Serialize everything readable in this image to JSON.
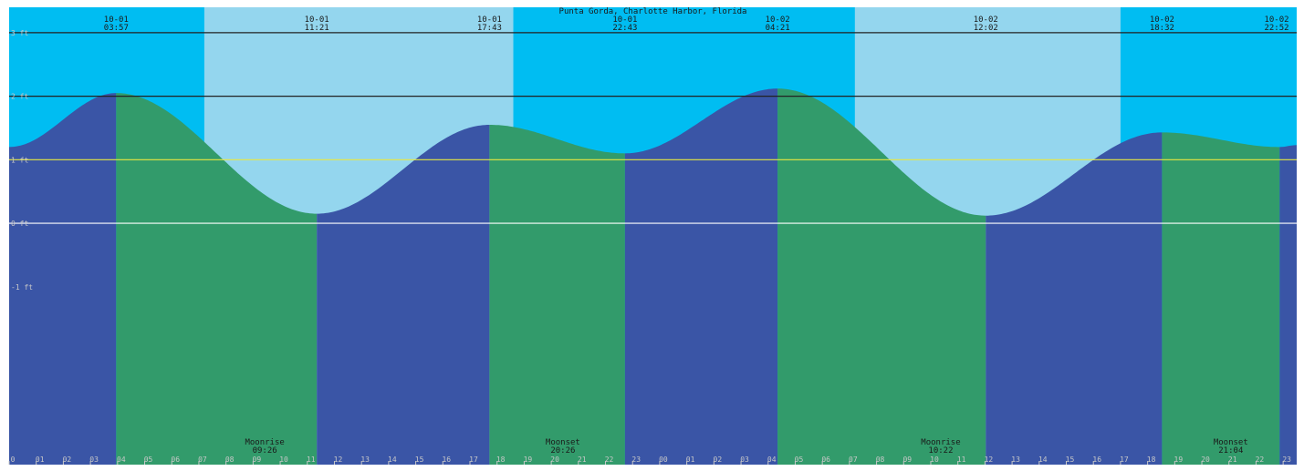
{
  "chart_data": {
    "type": "area",
    "title": "Punta Gorda, Charlotte Harbor, Florida",
    "ylim": [
      -3.8,
      3.4
    ],
    "y_ticks": [
      {
        "value": 3,
        "label": "3 ft"
      },
      {
        "value": 2,
        "label": "2 ft"
      },
      {
        "value": 1,
        "label": "1 ft"
      },
      {
        "value": 0,
        "label": "0 ft"
      },
      {
        "value": -1,
        "label": "-1 ft"
      }
    ],
    "x_range_hours": [
      0,
      47.5
    ],
    "hour_ticks": [
      "0",
      "01",
      "02",
      "03",
      "04",
      "05",
      "06",
      "07",
      "08",
      "09",
      "10",
      "11",
      "12",
      "13",
      "14",
      "15",
      "16",
      "17",
      "18",
      "19",
      "20",
      "21",
      "22",
      "23",
      "00",
      "01",
      "02",
      "03",
      "04",
      "05",
      "06",
      "07",
      "08",
      "09",
      "10",
      "11",
      "12",
      "13",
      "14",
      "15",
      "16",
      "17",
      "18",
      "19",
      "20",
      "21",
      "22",
      "23"
    ],
    "extremes": [
      {
        "date": "10-01",
        "time": "03:57",
        "hour": 3.95,
        "height": 2.05,
        "kind": "high"
      },
      {
        "date": "10-01",
        "time": "11:21",
        "hour": 11.35,
        "height": 0.15,
        "kind": "low"
      },
      {
        "date": "10-01",
        "time": "17:43",
        "hour": 17.72,
        "height": 1.55,
        "kind": "high"
      },
      {
        "date": "10-01",
        "time": "22:43",
        "hour": 22.72,
        "height": 1.1,
        "kind": "low"
      },
      {
        "date": "10-02",
        "time": "04:21",
        "hour": 28.35,
        "height": 2.12,
        "kind": "high"
      },
      {
        "date": "10-02",
        "time": "12:02",
        "hour": 36.03,
        "height": 0.12,
        "kind": "low"
      },
      {
        "date": "10-02",
        "time": "18:32",
        "hour": 42.53,
        "height": 1.43,
        "kind": "high"
      },
      {
        "date": "10-02",
        "time": "22:52",
        "hour": 46.87,
        "height": 1.2,
        "kind": "low"
      }
    ],
    "start_height": 1.2,
    "end_height": 1.23,
    "daylight": [
      {
        "from": 7.2,
        "to": 18.6
      },
      {
        "from": 31.2,
        "to": 41.0
      }
    ],
    "moon_events": [
      {
        "label": "Moonrise",
        "time": "09:26",
        "hour": 9.43
      },
      {
        "label": "Moonset",
        "time": "20:26",
        "hour": 20.43
      },
      {
        "label": "Moonrise",
        "time": "10:22",
        "hour": 34.37
      },
      {
        "label": "Moonset",
        "time": "21:04",
        "hour": 45.07
      }
    ],
    "grid": true,
    "colors": {
      "night_sky": "#00bdf2",
      "day_sky": "#94d6ee",
      "rising_water": "#3a55a6",
      "falling_water": "#329b6b",
      "grid_line": "#222222",
      "mean_line": "#e8e840",
      "zero_line": "#ffffff",
      "text": "#1a1a1a",
      "axis_text": "#c8c8c8"
    }
  }
}
